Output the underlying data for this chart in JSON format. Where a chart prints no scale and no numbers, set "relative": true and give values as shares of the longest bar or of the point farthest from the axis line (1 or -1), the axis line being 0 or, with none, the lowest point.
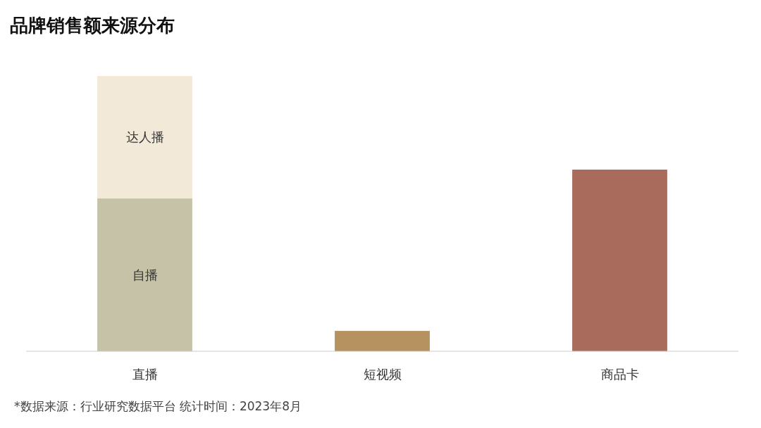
{
  "chart_data": {
    "type": "bar",
    "title": "品牌销售额来源分布",
    "categories": [
      "直播",
      "短视频",
      "商品卡"
    ],
    "stacked": true,
    "relative": true,
    "series": [
      {
        "name": "自播",
        "color": "#c5c2a8",
        "values": [
          0.555,
          null,
          null
        ]
      },
      {
        "name": "达人播",
        "color": "#f2e9d8",
        "values": [
          0.445,
          null,
          null
        ]
      },
      {
        "colors": [
          null,
          "#b5925f",
          "#a96b5b"
        ],
        "values": [
          null,
          0.074,
          0.66
        ]
      }
    ],
    "annotations": [
      "*数据来源：行业研究数据平台 统计时间：2023年8月"
    ]
  }
}
